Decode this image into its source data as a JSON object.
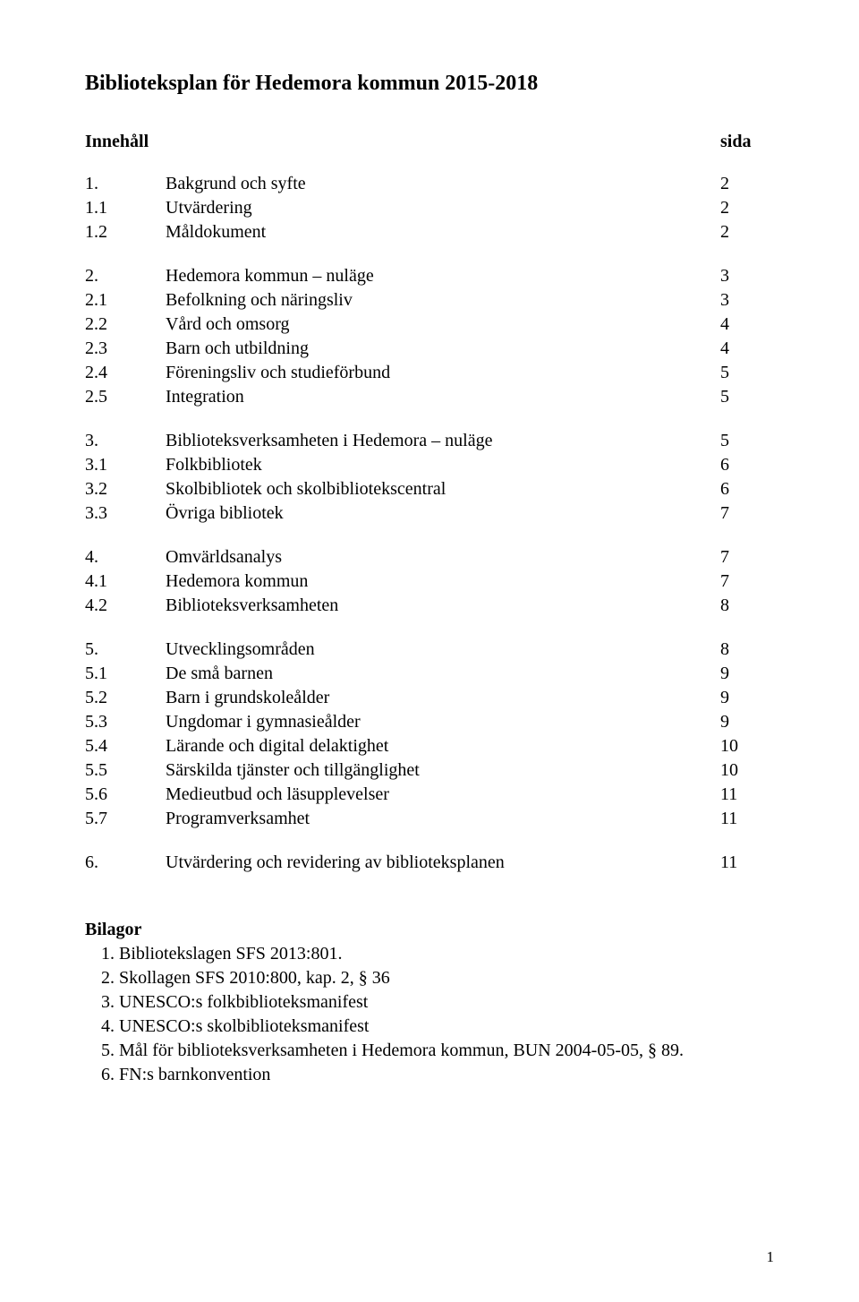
{
  "title": "Biblioteksplan för Hedemora kommun 2015-2018",
  "header": {
    "left": "Innehåll",
    "right": "sida"
  },
  "sections": [
    [
      {
        "num": "1.",
        "text": "Bakgrund och syfte",
        "page": "2"
      },
      {
        "num": "1.1",
        "text": "Utvärdering",
        "page": "2"
      },
      {
        "num": "1.2",
        "text": "Måldokument",
        "page": "2"
      }
    ],
    [
      {
        "num": "2.",
        "text": "Hedemora kommun – nuläge",
        "page": "3"
      },
      {
        "num": "2.1",
        "text": "Befolkning och näringsliv",
        "page": "3"
      },
      {
        "num": "2.2",
        "text": "Vård och omsorg",
        "page": "4"
      },
      {
        "num": "2.3",
        "text": "Barn och utbildning",
        "page": "4"
      },
      {
        "num": "2.4",
        "text": "Föreningsliv och studieförbund",
        "page": "5"
      },
      {
        "num": "2.5",
        "text": "Integration",
        "page": "5"
      }
    ],
    [
      {
        "num": "3.",
        "text": "Biblioteksverksamheten i Hedemora – nuläge",
        "page": "5"
      },
      {
        "num": "3.1",
        "text": "Folkbibliotek",
        "page": "6"
      },
      {
        "num": "3.2",
        "text": "Skolbibliotek och skolbibliotekscentral",
        "page": "6"
      },
      {
        "num": "3.3",
        "text": "Övriga bibliotek",
        "page": "7"
      }
    ],
    [
      {
        "num": "4.",
        "text": "Omvärldsanalys",
        "page": "7"
      },
      {
        "num": "4.1",
        "text": "Hedemora kommun",
        "page": "7"
      },
      {
        "num": "4.2",
        "text": "Biblioteksverksamheten",
        "page": "8"
      }
    ],
    [
      {
        "num": "5.",
        "text": "Utvecklingsområden",
        "page": "8"
      },
      {
        "num": "5.1",
        "text": "De små barnen",
        "page": "9"
      },
      {
        "num": "5.2",
        "text": "Barn i grundskoleålder",
        "page": "9"
      },
      {
        "num": "5.3",
        "text": "Ungdomar i gymnasieålder",
        "page": "9"
      },
      {
        "num": "5.4",
        "text": "Lärande och digital delaktighet",
        "page": "10"
      },
      {
        "num": "5.5",
        "text": "Särskilda tjänster och tillgänglighet",
        "page": "10"
      },
      {
        "num": "5.6",
        "text": "Medieutbud och läsupplevelser",
        "page": "11"
      },
      {
        "num": "5.7",
        "text": "Programverksamhet",
        "page": "11"
      }
    ],
    [
      {
        "num": "6.",
        "text": "Utvärdering och revidering av biblioteksplanen",
        "page": "11"
      }
    ]
  ],
  "bilagor": {
    "title": "Bilagor",
    "items": [
      "1.  Bibliotekslagen SFS 2013:801.",
      "2.  Skollagen SFS 2010:800, kap. 2, § 36",
      "3.  UNESCO:s folkbiblioteksmanifest",
      "4.  UNESCO:s skolbiblioteksmanifest",
      "5.  Mål för biblioteksverksamheten i Hedemora kommun, BUN 2004-05-05, § 89.",
      "6.  FN:s barnkonvention"
    ]
  },
  "pageNumber": "1"
}
